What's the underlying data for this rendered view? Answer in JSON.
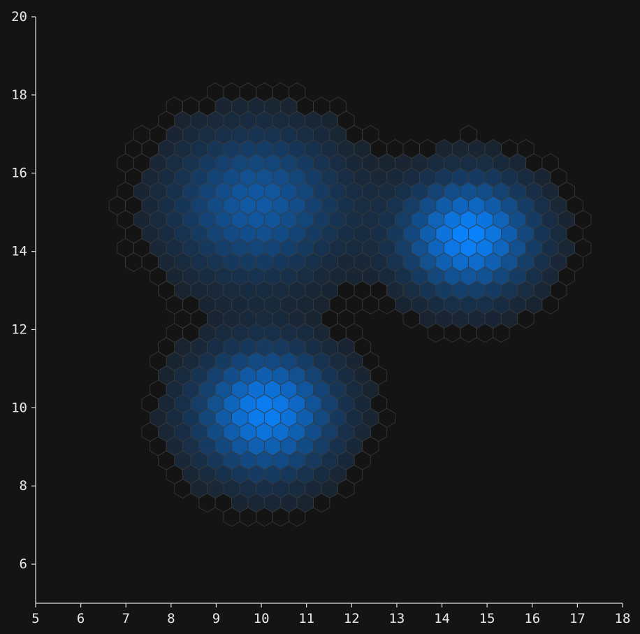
{
  "chart_data": {
    "type": "heatmap",
    "subtype": "hexbin",
    "title": "",
    "xlabel": "",
    "ylabel": "",
    "xlim": [
      5,
      18
    ],
    "ylim": [
      5,
      20
    ],
    "x_ticks": [
      5,
      6,
      7,
      8,
      9,
      10,
      11,
      12,
      13,
      14,
      15,
      16,
      17,
      18
    ],
    "y_ticks": [
      6,
      8,
      10,
      12,
      14,
      16,
      18,
      20
    ],
    "grid": false,
    "legend": "none",
    "colors": {
      "background": "#141414",
      "empty_bin_stroke": "#3a3a3a",
      "low_density": "#1a1f26",
      "high_density": "#0a84ff",
      "axis": "#e0e0e0",
      "text": "#e8e8e8"
    },
    "density_peaks": [
      {
        "x": 9.9,
        "y": 15.2,
        "sx": 1.3,
        "sy": 1.3,
        "weight": 0.62
      },
      {
        "x": 14.6,
        "y": 14.4,
        "sx": 1.0,
        "sy": 1.0,
        "weight": 1.0
      },
      {
        "x": 10.1,
        "y": 9.9,
        "sx": 1.05,
        "sy": 1.1,
        "weight": 0.95
      }
    ]
  }
}
